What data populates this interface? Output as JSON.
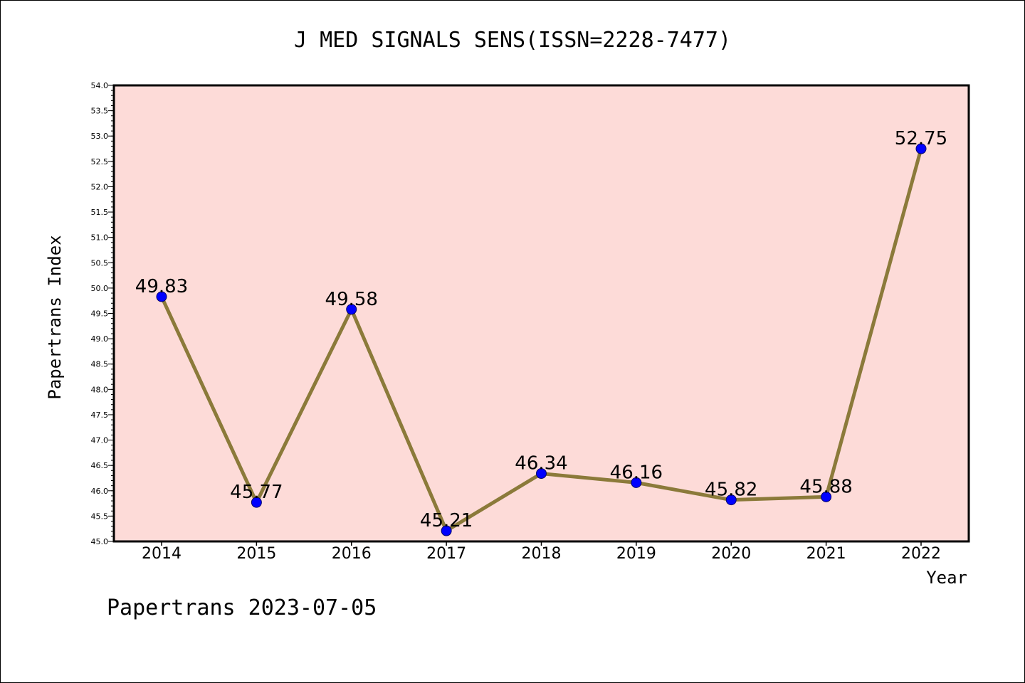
{
  "chart_data": {
    "type": "line",
    "title": "J MED SIGNALS SENS(ISSN=2228-7477)",
    "xlabel": "Year",
    "ylabel": "Papertrans Index",
    "categories": [
      "2014",
      "2015",
      "2016",
      "2017",
      "2018",
      "2019",
      "2020",
      "2021",
      "2022"
    ],
    "values": [
      49.83,
      45.77,
      49.58,
      45.21,
      46.34,
      46.16,
      45.82,
      45.88,
      52.75
    ],
    "data_labels": [
      "49.83",
      "45.77",
      "49.58",
      "45.21",
      "46.34",
      "46.16",
      "45.82",
      "45.88",
      "52.75"
    ],
    "ylim": [
      45.0,
      54.0
    ],
    "yticks": [
      "45.0",
      "45.5",
      "46.0",
      "46.5",
      "47.0",
      "47.5",
      "48.0",
      "48.5",
      "49.0",
      "49.5",
      "50.0",
      "50.5",
      "51.0",
      "51.5",
      "52.0",
      "52.5",
      "53.0",
      "53.5",
      "54.0"
    ],
    "grid": false,
    "colors": {
      "plot_background": "#fddbd8",
      "line": "#8b7a3a",
      "marker": "#0000ff"
    }
  },
  "footer": "Papertrans 2023-07-05"
}
